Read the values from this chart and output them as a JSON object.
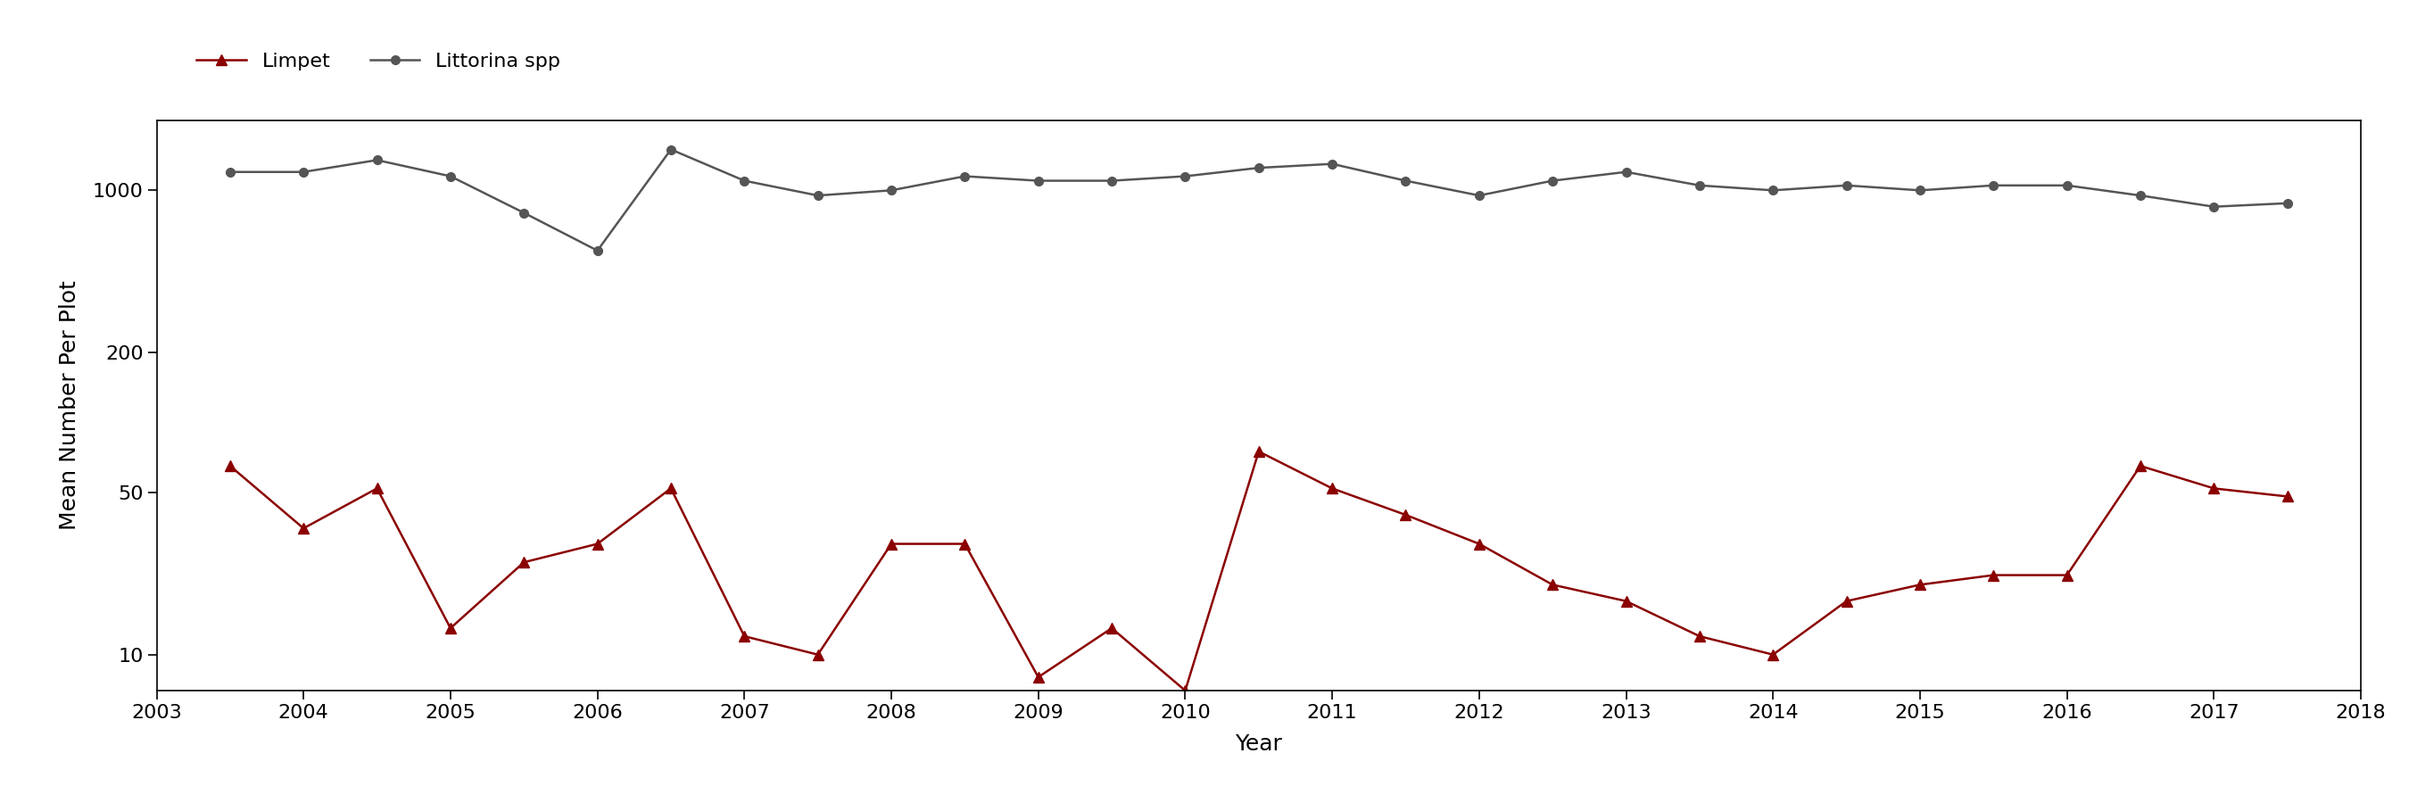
{
  "limpet_x": [
    2003.5,
    2004.0,
    2004.5,
    2005.0,
    2005.5,
    2006.0,
    2006.5,
    2007.0,
    2007.5,
    2008.0,
    2008.5,
    2009.0,
    2009.5,
    2010.0,
    2010.5,
    2011.0,
    2011.5,
    2012.0,
    2012.5,
    2013.0,
    2013.5,
    2014.0,
    2014.5,
    2015.0,
    2015.5,
    2016.0,
    2016.5,
    2017.0,
    2017.5
  ],
  "limpet_y": [
    65,
    35,
    52,
    13,
    25,
    30,
    52,
    12,
    10,
    30,
    30,
    8,
    13,
    7,
    75,
    52,
    40,
    30,
    20,
    17,
    12,
    10,
    17,
    20,
    22,
    22,
    65,
    52,
    48
  ],
  "littorina_x": [
    2003.5,
    2004.0,
    2004.5,
    2005.0,
    2005.5,
    2006.0,
    2006.5,
    2007.0,
    2007.5,
    2008.0,
    2008.5,
    2009.0,
    2009.5,
    2010.0,
    2010.5,
    2011.0,
    2011.5,
    2012.0,
    2012.5,
    2013.0,
    2013.5,
    2014.0,
    2014.5,
    2015.0,
    2015.5,
    2016.0,
    2016.5,
    2017.0,
    2017.5
  ],
  "littorina_y": [
    1200,
    1200,
    1350,
    1150,
    800,
    550,
    1500,
    1100,
    950,
    1000,
    1150,
    1100,
    1100,
    1150,
    1250,
    1300,
    1100,
    950,
    1100,
    1200,
    1050,
    1000,
    1050,
    1000,
    1050,
    1050,
    950,
    850,
    880
  ],
  "limpet_color": "#8B0000",
  "littorina_color": "#555555",
  "xlabel": "Year",
  "ylabel": "Mean Number Per Plot",
  "yticks": [
    10,
    50,
    200,
    1000
  ],
  "xlim": [
    2003,
    2018
  ],
  "ylim_log": [
    7,
    2000
  ],
  "xticks": [
    2003,
    2004,
    2005,
    2006,
    2007,
    2008,
    2009,
    2010,
    2011,
    2012,
    2013,
    2014,
    2015,
    2016,
    2017,
    2018
  ],
  "legend_limpet": "Limpet",
  "legend_littorina": "Littorina spp",
  "background_color": "#ffffff",
  "label_fontsize": 18,
  "tick_fontsize": 16,
  "legend_fontsize": 16
}
